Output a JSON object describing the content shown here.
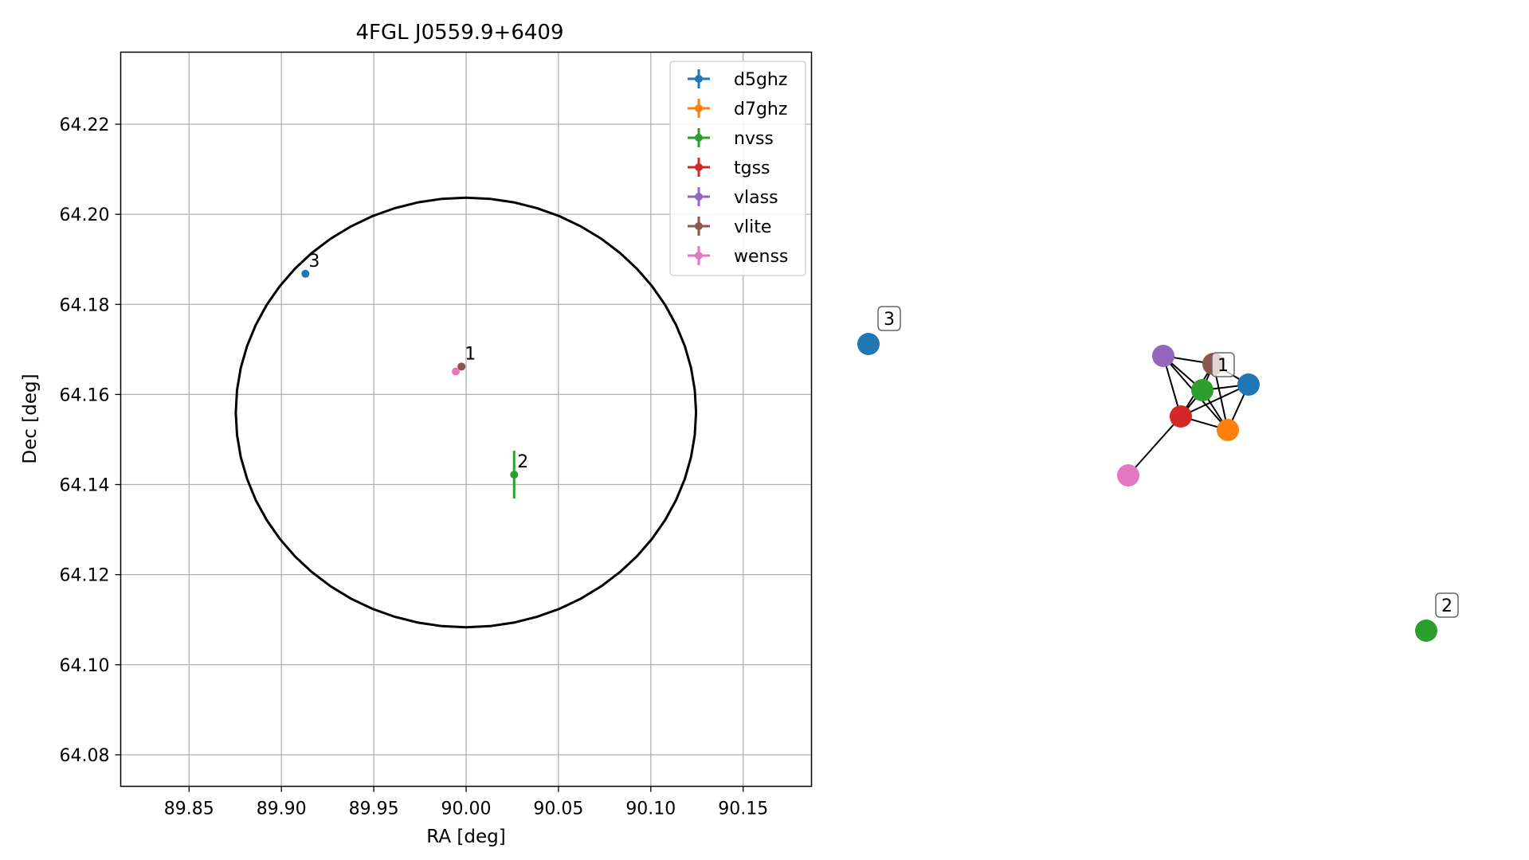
{
  "chart_data": [
    {
      "type": "scatter",
      "title": "4FGL J0559.9+6409",
      "xlabel": "RA [deg]",
      "ylabel": "Dec [deg]",
      "xlim": [
        89.813,
        90.187
      ],
      "ylim": [
        64.073,
        64.236
      ],
      "xticks": [
        89.85,
        89.9,
        89.95,
        90.0,
        90.05,
        90.1,
        90.15
      ],
      "xtick_labels": [
        "89.85",
        "89.90",
        "89.95",
        "90.00",
        "90.05",
        "90.10",
        "90.15"
      ],
      "yticks": [
        64.08,
        64.1,
        64.12,
        64.14,
        64.16,
        64.18,
        64.2,
        64.22
      ],
      "ytick_labels": [
        "64.08",
        "64.10",
        "64.12",
        "64.14",
        "64.16",
        "64.18",
        "64.20",
        "64.22"
      ],
      "grid": true,
      "legend_position": "top-right",
      "error_circle": {
        "ra_center": 89.9999,
        "dec_center": 64.156,
        "ra_radius": 0.1246,
        "dec_radius": 0.0477,
        "color": "#000000"
      },
      "series": [
        {
          "name": "d5ghz",
          "color": "#1f77b4",
          "points": [
            {
              "ra": 89.913,
              "dec": 64.1868,
              "ra_err": 0.0,
              "dec_err": 0.0
            }
          ]
        },
        {
          "name": "d7ghz",
          "color": "#ff7f0e",
          "points": []
        },
        {
          "name": "nvss",
          "color": "#2ca02c",
          "points": [
            {
              "ra": 90.026,
              "dec": 64.1422,
              "ra_err": 0.0,
              "dec_err": 0.0053
            }
          ]
        },
        {
          "name": "tgss",
          "color": "#d62728",
          "points": []
        },
        {
          "name": "vlass",
          "color": "#9467bd",
          "points": []
        },
        {
          "name": "vlite",
          "color": "#8c564b",
          "points": [
            {
              "ra": 89.9975,
              "dec": 64.1662,
              "ra_err": 0.0,
              "dec_err": 0.0
            }
          ]
        },
        {
          "name": "wenss",
          "color": "#e377c2",
          "points": [
            {
              "ra": 89.9944,
              "dec": 64.1651,
              "ra_err": 0.0,
              "dec_err": 0.0
            }
          ]
        }
      ],
      "annotations": [
        {
          "text": "1",
          "ra": 89.9975,
          "dec": 64.1662
        },
        {
          "text": "2",
          "ra": 90.026,
          "dec": 64.1422
        },
        {
          "text": "3",
          "ra": 89.913,
          "dec": 64.1868
        }
      ]
    },
    {
      "type": "network",
      "nodes": [
        {
          "id": "d5ghz-3",
          "color": "#1f77b4",
          "label": "3"
        },
        {
          "id": "vlass",
          "color": "#9467bd"
        },
        {
          "id": "vlite",
          "color": "#8c564b"
        },
        {
          "id": "nvss-1",
          "color": "#2ca02c",
          "label": "1"
        },
        {
          "id": "d5ghz-1",
          "color": "#1f77b4"
        },
        {
          "id": "tgss",
          "color": "#d62728"
        },
        {
          "id": "d7ghz",
          "color": "#ff7f0e"
        },
        {
          "id": "wenss",
          "color": "#e377c2"
        },
        {
          "id": "nvss-2",
          "color": "#2ca02c",
          "label": "2"
        }
      ],
      "edges": [
        [
          "vlass",
          "vlite"
        ],
        [
          "vlass",
          "tgss"
        ],
        [
          "vlass",
          "d7ghz"
        ],
        [
          "vlass",
          "nvss-1"
        ],
        [
          "vlite",
          "d5ghz-1"
        ],
        [
          "vlite",
          "tgss"
        ],
        [
          "vlite",
          "d7ghz"
        ],
        [
          "vlite",
          "nvss-1"
        ],
        [
          "nvss-1",
          "d5ghz-1"
        ],
        [
          "nvss-1",
          "tgss"
        ],
        [
          "nvss-1",
          "d7ghz"
        ],
        [
          "d5ghz-1",
          "tgss"
        ],
        [
          "d5ghz-1",
          "d7ghz"
        ],
        [
          "tgss",
          "d7ghz"
        ],
        [
          "tgss",
          "wenss"
        ]
      ]
    }
  ]
}
